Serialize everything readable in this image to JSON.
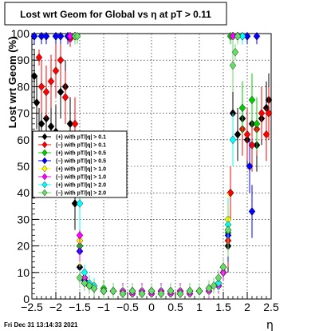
{
  "chart_data": {
    "type": "scatter",
    "title": "Lost wrt Geom for Global vs   η at pT > 0.11",
    "xlabel": "η",
    "ylabel": "Lost wrt Geom (%)",
    "xlim": [
      -2.5,
      2.5
    ],
    "ylim": [
      0,
      100
    ],
    "grid": true,
    "legend_position": "left",
    "footer": "Fri Dec 31 13:14:33 2021",
    "x_ticks": [
      "−2.5",
      "−2",
      "−1.5",
      "−1",
      "−0.5",
      "0",
      "0.5",
      "1",
      "1.5",
      "2",
      "2.5"
    ],
    "y_ticks": [
      "0",
      "10",
      "20",
      "30",
      "40",
      "50",
      "60",
      "70",
      "80",
      "90",
      "100"
    ],
    "series": [
      {
        "name": "(+) with pT/|q| > 0.1",
        "color": "#000000",
        "x": [
          -2.45,
          -2.4,
          -2.35,
          -2.3,
          -2.2,
          -2.1,
          -2.0,
          -1.9,
          -1.8,
          -1.7,
          -1.6,
          -1.5,
          -1.4,
          -1.3,
          -1.2,
          -1.0,
          -0.8,
          -0.6,
          -0.4,
          -0.2,
          0.0,
          0.2,
          0.4,
          0.6,
          0.8,
          1.0,
          1.2,
          1.4,
          1.5,
          1.6,
          1.65,
          1.7,
          1.8,
          1.9,
          2.0,
          2.1,
          2.2,
          2.3,
          2.4,
          2.45
        ],
        "y": [
          84,
          74,
          62,
          66,
          68,
          65,
          63,
          78,
          80,
          66,
          36,
          12,
          6,
          5,
          4,
          3,
          3,
          2,
          3,
          2,
          3,
          2,
          3,
          2,
          3,
          3,
          4,
          5,
          10,
          20,
          40,
          70,
          62,
          68,
          60,
          66,
          58,
          68,
          72,
          75
        ]
      },
      {
        "name": "(−) with pT/|q| > 0.1",
        "color": "#ff0000",
        "x": [
          -2.45,
          -2.35,
          -2.3,
          -2.2,
          -2.1,
          -2.0,
          -1.9,
          -1.8,
          -1.75,
          -1.7,
          -1.6,
          -1.5,
          -1.4,
          -1.3,
          -1.2,
          -1.0,
          -0.8,
          -0.6,
          -0.4,
          -0.2,
          0.0,
          0.2,
          0.4,
          0.6,
          0.8,
          1.0,
          1.2,
          1.4,
          1.5,
          1.6,
          1.65,
          1.7,
          1.8,
          1.9,
          2.0,
          2.1,
          2.2,
          2.3,
          2.4,
          2.45
        ],
        "y": [
          99,
          91,
          80,
          78,
          82,
          86,
          90,
          76,
          99,
          98,
          66,
          20,
          8,
          5,
          4,
          3,
          3,
          3,
          2,
          3,
          2,
          3,
          2,
          3,
          3,
          3,
          4,
          5,
          10,
          22,
          40,
          99,
          99,
          64,
          62,
          58,
          64,
          70,
          62,
          70
        ]
      },
      {
        "name": "(+) with pT/|q| > 0.5",
        "color": "#00cc00",
        "x": [
          -2.45,
          -2.3,
          -2.2,
          -2.0,
          -1.9,
          -1.75,
          -1.7,
          -1.6,
          -1.5,
          -1.4,
          -1.3,
          -1.2,
          -1.0,
          -0.8,
          -0.6,
          -0.4,
          -0.2,
          0.0,
          0.2,
          0.4,
          0.6,
          0.8,
          1.0,
          1.2,
          1.4,
          1.5,
          1.6,
          1.65,
          1.7,
          1.8,
          1.9,
          2.0,
          2.1,
          2.2
        ],
        "y": [
          99,
          99,
          99,
          99,
          99,
          99,
          99,
          99,
          20,
          6,
          5,
          4,
          4,
          3,
          2,
          3,
          2,
          3,
          2,
          3,
          2,
          3,
          3,
          4,
          6,
          12,
          25,
          99,
          99,
          99,
          72,
          99,
          75,
          66
        ]
      },
      {
        "name": "(−) with pT/|q| > 0.5",
        "color": "#0000ff",
        "x": [
          -2.45,
          -2.3,
          -2.2,
          -2.0,
          -1.9,
          -1.75,
          -1.7,
          -1.6,
          -1.5,
          -1.4,
          -1.3,
          -1.2,
          -1.0,
          -0.8,
          -0.6,
          -0.4,
          -0.2,
          0.0,
          0.2,
          0.4,
          0.6,
          0.8,
          1.0,
          1.2,
          1.4,
          1.5,
          1.6,
          1.7,
          1.8,
          1.9,
          2.0,
          2.05,
          2.1,
          2.2
        ],
        "y": [
          99,
          99,
          99,
          99,
          99,
          99,
          99,
          99,
          18,
          7,
          5,
          4,
          3,
          3,
          3,
          2,
          3,
          2,
          3,
          2,
          3,
          2,
          3,
          3,
          5,
          10,
          24,
          99,
          99,
          99,
          99,
          50,
          33,
          99
        ]
      },
      {
        "name": "(+) with pT/|q| > 1.0",
        "color": "#ffff00",
        "x": [
          -1.6,
          -1.5,
          -1.4,
          -1.3,
          -1.2,
          -1.0,
          -0.8,
          -0.6,
          -0.4,
          -0.2,
          0.0,
          0.2,
          0.4,
          0.6,
          0.8,
          1.0,
          1.2,
          1.4,
          1.5,
          1.6,
          1.7,
          1.8
        ],
        "y": [
          99,
          22,
          8,
          5,
          4,
          3,
          3,
          2,
          3,
          2,
          3,
          2,
          3,
          2,
          3,
          3,
          4,
          5,
          12,
          30,
          99,
          99
        ]
      },
      {
        "name": "(−) with pT/|q| > 1.0",
        "color": "#ff00ff",
        "x": [
          -1.7,
          -1.6,
          -1.5,
          -1.4,
          -1.3,
          -1.2,
          -1.0,
          -0.8,
          -0.6,
          -0.4,
          -0.2,
          0.0,
          0.2,
          0.4,
          0.6,
          0.8,
          1.0,
          1.2,
          1.4,
          1.5,
          1.6,
          1.7
        ],
        "y": [
          99,
          99,
          24,
          8,
          5,
          4,
          3,
          3,
          3,
          2,
          3,
          2,
          3,
          2,
          3,
          2,
          3,
          3,
          5,
          10,
          26,
          99
        ]
      },
      {
        "name": "(+) with pT/|q| > 2.0",
        "color": "#00ffff",
        "x": [
          -1.6,
          -1.5,
          -1.4,
          -1.3,
          -1.2,
          -1.0,
          -0.8,
          -0.6,
          -0.4,
          -0.2,
          0.0,
          0.2,
          0.4,
          0.6,
          0.8,
          1.0,
          1.2,
          1.4,
          1.5,
          1.6,
          1.7,
          1.8,
          1.9
        ],
        "y": [
          99,
          36,
          10,
          6,
          5,
          3,
          3,
          2,
          3,
          2,
          3,
          2,
          3,
          2,
          3,
          3,
          4,
          6,
          12,
          28,
          60,
          99,
          99
        ]
      },
      {
        "name": "(−) with pT/|q| > 2.0",
        "color": "#66dd66",
        "x": [
          -1.6,
          -1.55,
          -1.5,
          -1.4,
          -1.3,
          -1.2,
          -1.0,
          -0.8,
          -0.6,
          -0.4,
          -0.2,
          0.0,
          0.2,
          0.4,
          0.6,
          0.8,
          1.0,
          1.2,
          1.3,
          1.4,
          1.5,
          1.6,
          1.7,
          1.75,
          1.8
        ],
        "y": [
          99,
          99,
          8,
          6,
          5,
          4,
          3,
          3,
          2,
          3,
          2,
          3,
          2,
          3,
          2,
          3,
          3,
          4,
          5,
          8,
          12,
          26,
          88,
          93,
          99
        ]
      }
    ]
  }
}
